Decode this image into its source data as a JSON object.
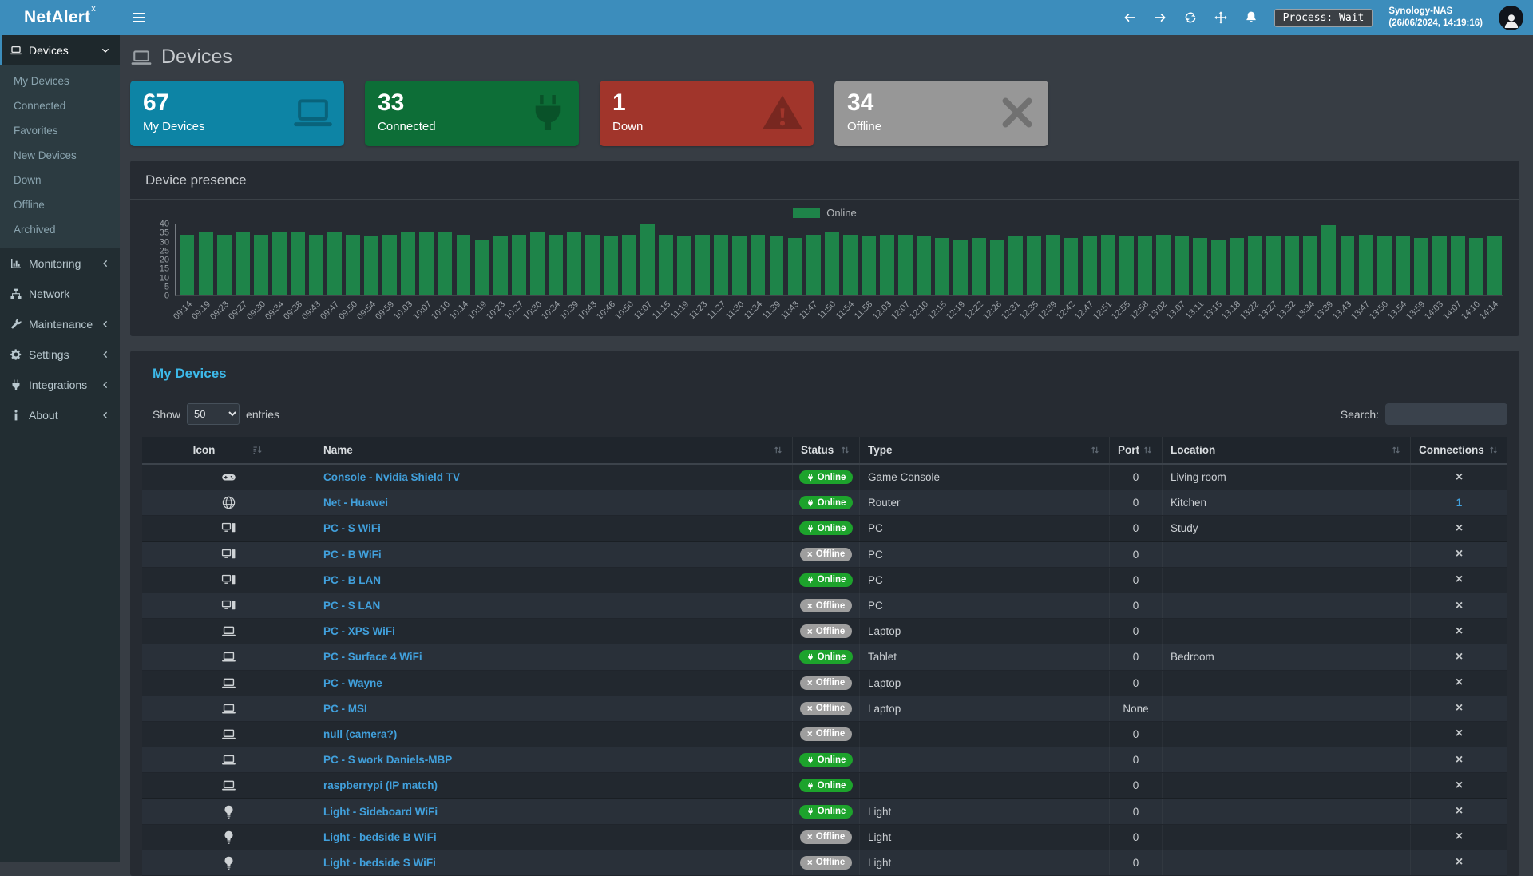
{
  "navbar": {
    "logo_text": "NetAlert",
    "logo_sup": "x",
    "process_badge": "Process: Wait",
    "host": "Synology-NAS",
    "timestamp": "(26/06/2024, 14:19:16)"
  },
  "sidebar": {
    "devices_label": "Devices",
    "submenu": [
      "My Devices",
      "Connected",
      "Favorites",
      "New Devices",
      "Down",
      "Offline",
      "Archived"
    ],
    "sections": [
      {
        "label": "Monitoring",
        "icon": "chart-icon",
        "chevron": true
      },
      {
        "label": "Network",
        "icon": "network-icon",
        "chevron": false
      },
      {
        "label": "Maintenance",
        "icon": "wrench-icon",
        "chevron": true
      },
      {
        "label": "Settings",
        "icon": "gear-icon",
        "chevron": true
      },
      {
        "label": "Integrations",
        "icon": "plug-icon",
        "chevron": true
      },
      {
        "label": "About",
        "icon": "info-icon",
        "chevron": true
      }
    ]
  },
  "page": {
    "title": "Devices"
  },
  "cards": [
    {
      "value": "67",
      "label": "My Devices",
      "color": "#0d84a5",
      "icon": "laptop-icon"
    },
    {
      "value": "33",
      "label": "Connected",
      "color": "#0d6e37",
      "icon": "plug-icon"
    },
    {
      "value": "1",
      "label": "Down",
      "color": "#a1352b",
      "icon": "warning-icon"
    },
    {
      "value": "34",
      "label": "Offline",
      "color": "#979797",
      "icon": "x-icon"
    }
  ],
  "chart_panel": {
    "title": "Device presence",
    "legend_label": "Online"
  },
  "chart_data": {
    "type": "bar",
    "title": "Device presence",
    "series": [
      {
        "name": "Online",
        "color": "#1e8449"
      }
    ],
    "x": [
      "09:14",
      "09:19",
      "09:23",
      "09:27",
      "09:30",
      "09:34",
      "09:38",
      "09:43",
      "09:47",
      "09:50",
      "09:54",
      "09:59",
      "10:03",
      "10:07",
      "10:10",
      "10:14",
      "10:19",
      "10:23",
      "10:27",
      "10:30",
      "10:34",
      "10:39",
      "10:43",
      "10:46",
      "10:50",
      "11:07",
      "11:15",
      "11:19",
      "11:23",
      "11:27",
      "11:30",
      "11:34",
      "11:39",
      "11:43",
      "11:47",
      "11:50",
      "11:54",
      "11:58",
      "12:03",
      "12:07",
      "12:10",
      "12:15",
      "12:19",
      "12:22",
      "12:26",
      "12:31",
      "12:35",
      "12:39",
      "12:42",
      "12:47",
      "12:51",
      "12:55",
      "12:58",
      "13:02",
      "13:07",
      "13:11",
      "13:15",
      "13:18",
      "13:22",
      "13:27",
      "13:32",
      "13:34",
      "13:39",
      "13:43",
      "13:47",
      "13:50",
      "13:54",
      "13:59",
      "14:03",
      "14:07",
      "14:10",
      "14:14"
    ],
    "values": [
      34,
      35,
      34,
      35,
      34,
      35,
      35,
      34,
      35,
      34,
      33,
      34,
      35,
      35,
      35,
      34,
      31,
      33,
      34,
      35,
      34,
      35,
      34,
      33,
      34,
      40,
      34,
      33,
      34,
      34,
      33,
      34,
      33,
      32,
      34,
      35,
      34,
      33,
      34,
      34,
      33,
      32,
      31,
      32,
      31,
      33,
      33,
      34,
      32,
      33,
      34,
      33,
      33,
      34,
      33,
      32,
      31,
      32,
      33,
      33,
      33,
      33,
      39,
      33,
      34,
      33,
      33,
      32,
      33,
      33,
      32,
      33
    ],
    "ylim": [
      0,
      40
    ],
    "ytick_step": 5,
    "legend_position": "top-center",
    "grid": false
  },
  "table": {
    "title": "My Devices",
    "show_label": "Show",
    "entries_label": "entries",
    "page_size": "50",
    "search_label": "Search:",
    "search_value": "",
    "columns": [
      {
        "label": "Icon",
        "sort": "sort-list-icon",
        "align": "center"
      },
      {
        "label": "Name",
        "sort": "sort-icon"
      },
      {
        "label": "Status",
        "sort": "sort-icon"
      },
      {
        "label": "Type",
        "sort": "sort-icon"
      },
      {
        "label": "Port",
        "sort": "sort-icon"
      },
      {
        "label": "Location",
        "sort": "sort-icon"
      },
      {
        "label": "Connections",
        "sort": "sort-icon"
      }
    ],
    "rows": [
      {
        "icon": "gamepad-icon",
        "name": "Console - Nvidia Shield TV",
        "status": "Online",
        "type": "Game Console",
        "port": "0",
        "location": "Living room",
        "connections": "x"
      },
      {
        "icon": "globe-icon",
        "name": "Net - Huawei",
        "status": "Online",
        "type": "Router",
        "port": "0",
        "location": "Kitchen",
        "connections": "1"
      },
      {
        "icon": "desktop-icon",
        "name": "PC - S WiFi",
        "status": "Online",
        "type": "PC",
        "port": "0",
        "location": "Study",
        "connections": "x"
      },
      {
        "icon": "desktop-icon",
        "name": "PC - B WiFi",
        "status": "Offline",
        "type": "PC",
        "port": "0",
        "location": "",
        "connections": "x"
      },
      {
        "icon": "desktop-icon",
        "name": "PC - B LAN",
        "status": "Online",
        "type": "PC",
        "port": "0",
        "location": "",
        "connections": "x"
      },
      {
        "icon": "desktop-icon",
        "name": "PC - S LAN",
        "status": "Offline",
        "type": "PC",
        "port": "0",
        "location": "",
        "connections": "x"
      },
      {
        "icon": "laptop-icon",
        "name": "PC - XPS WiFi",
        "status": "Offline",
        "type": "Laptop",
        "port": "0",
        "location": "",
        "connections": "x"
      },
      {
        "icon": "laptop-icon",
        "name": "PC - Surface 4 WiFi",
        "status": "Online",
        "type": "Tablet",
        "port": "0",
        "location": "Bedroom",
        "connections": "x"
      },
      {
        "icon": "laptop-icon",
        "name": "PC - Wayne",
        "status": "Offline",
        "type": "Laptop",
        "port": "0",
        "location": "",
        "connections": "x"
      },
      {
        "icon": "laptop-icon",
        "name": "PC - MSI",
        "status": "Offline",
        "type": "Laptop",
        "port": "None",
        "location": "",
        "connections": "x"
      },
      {
        "icon": "laptop-icon",
        "name": "null (camera?)",
        "status": "Offline",
        "type": "",
        "port": "0",
        "location": "",
        "connections": "x"
      },
      {
        "icon": "laptop-icon",
        "name": "PC - S work Daniels-MBP",
        "status": "Online",
        "type": "",
        "port": "0",
        "location": "",
        "connections": "x"
      },
      {
        "icon": "laptop-icon",
        "name": "raspberrypi (IP match)",
        "status": "Online",
        "type": "",
        "port": "0",
        "location": "",
        "connections": "x"
      },
      {
        "icon": "lightbulb-icon",
        "name": "Light - Sideboard WiFi",
        "status": "Online",
        "type": "Light",
        "port": "0",
        "location": "",
        "connections": "x"
      },
      {
        "icon": "lightbulb-icon",
        "name": "Light - bedside B WiFi",
        "status": "Offline",
        "type": "Light",
        "port": "0",
        "location": "",
        "connections": "x"
      },
      {
        "icon": "lightbulb-icon",
        "name": "Light - bedside S WiFi",
        "status": "Offline",
        "type": "Light",
        "port": "0",
        "location": "",
        "connections": "x"
      }
    ],
    "status_colors": {
      "online": "#1da32c",
      "offline": "#9e9e9e"
    }
  }
}
